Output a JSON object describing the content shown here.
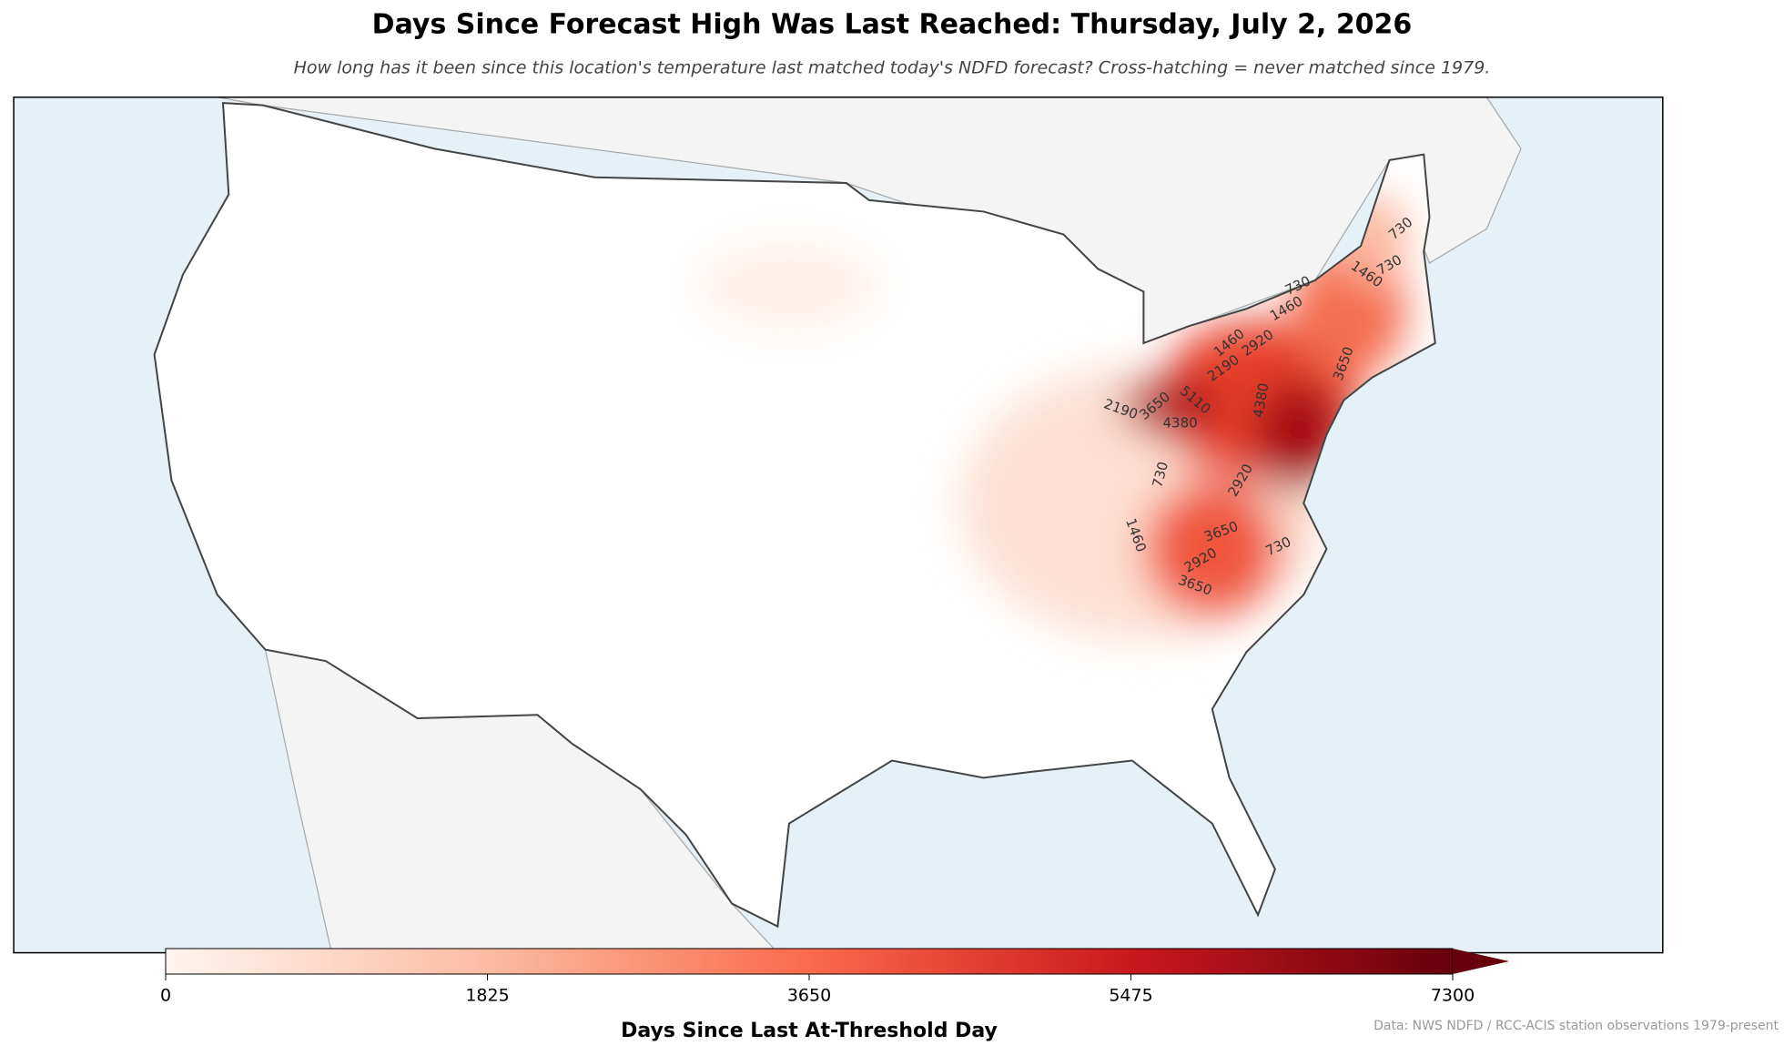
{
  "title": "Days Since Forecast High Was Last Reached: Thursday, July 2, 2026",
  "subtitle": "How long has it been since this location's temperature last matched today's NDFD forecast? Cross-hatching = never matched since 1979.",
  "colorbar": {
    "label": "Days Since Last At-Threshold Day",
    "lim": [
      0,
      7300
    ],
    "ticks": [
      0,
      1825,
      3650,
      5475,
      7300
    ]
  },
  "contour_labels": [
    730,
    730,
    1460,
    730,
    1460,
    1460,
    2190,
    2920,
    3650,
    2190,
    3650,
    5110,
    4380,
    4380,
    730,
    1460,
    2920,
    3650,
    2920,
    3650,
    730
  ],
  "credit": "Data: NWS NDFD / RCC-ACIS station observations 1979-present"
}
